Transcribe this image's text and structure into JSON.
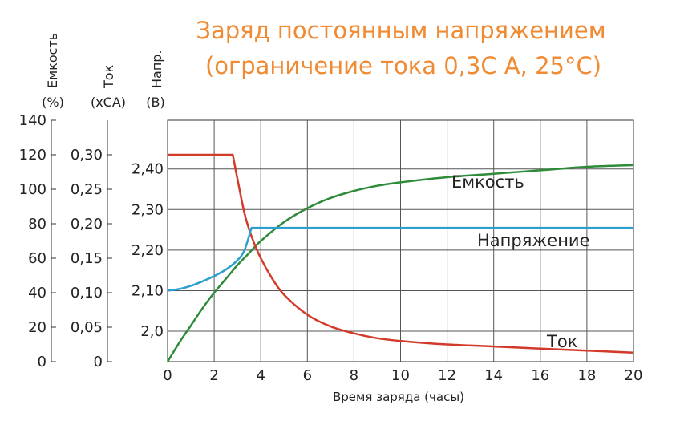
{
  "chart_data": {
    "type": "line",
    "title_line1": "Заряд постоянным напряжением",
    "title_line2": "(ограничение тока 0,3С А, 25°С)",
    "xlabel": "Время заряда (часы)",
    "xlim": [
      0,
      20
    ],
    "x_ticks": [
      "0",
      "2",
      "4",
      "6",
      "8",
      "10",
      "12",
      "14",
      "16",
      "18",
      "20"
    ],
    "grid": true,
    "axes": {
      "capacity": {
        "name": "Емкость",
        "unit": "(%)",
        "ylim": [
          0,
          140
        ],
        "ticks": [
          "0",
          "20",
          "40",
          "60",
          "80",
          "100",
          "120",
          "140"
        ]
      },
      "current": {
        "name": "Ток",
        "unit": "(хСА)",
        "ylim": [
          0,
          0.35
        ],
        "ticks": [
          "0",
          "0,05",
          "0,10",
          "0,15",
          "0,20",
          "0,25",
          "0,30"
        ]
      },
      "voltage": {
        "name": "Напр.",
        "unit": "(В)",
        "ylim": [
          1.925,
          2.52
        ],
        "ticks": [
          "2,0",
          "2,10",
          "2,20",
          "2,30",
          "2,40"
        ]
      }
    },
    "series": [
      {
        "name": "Емкость",
        "axis": "capacity",
        "color": "#2e8b3a",
        "x": [
          0,
          0.5,
          1,
          1.5,
          2,
          2.5,
          3,
          3.5,
          4,
          5,
          6,
          7,
          8,
          9,
          10,
          12,
          14,
          16,
          18,
          20
        ],
        "y": [
          0,
          11,
          21,
          31,
          40,
          48,
          56,
          63,
          70,
          81,
          89,
          95,
          99,
          102,
          104,
          107,
          109,
          111,
          113,
          114
        ]
      },
      {
        "name": "Ток",
        "axis": "current",
        "color": "#d23a2a",
        "x": [
          0,
          2.8,
          3.0,
          3.3,
          3.6,
          4,
          4.5,
          5,
          6,
          7,
          8,
          9,
          10,
          12,
          14,
          16,
          18,
          20
        ],
        "y": [
          0.3,
          0.3,
          0.265,
          0.215,
          0.182,
          0.15,
          0.12,
          0.097,
          0.068,
          0.051,
          0.041,
          0.034,
          0.03,
          0.025,
          0.022,
          0.019,
          0.016,
          0.013
        ]
      },
      {
        "name": "Напряжение",
        "axis": "voltage",
        "color": "#2a9fd0",
        "x": [
          0,
          0.5,
          1,
          1.5,
          2,
          2.5,
          3,
          3.3,
          3.6,
          5,
          8,
          10,
          15,
          20
        ],
        "y": [
          2.1,
          2.104,
          2.112,
          2.123,
          2.136,
          2.152,
          2.175,
          2.2,
          2.255,
          2.255,
          2.255,
          2.255,
          2.255,
          2.255
        ]
      }
    ]
  }
}
